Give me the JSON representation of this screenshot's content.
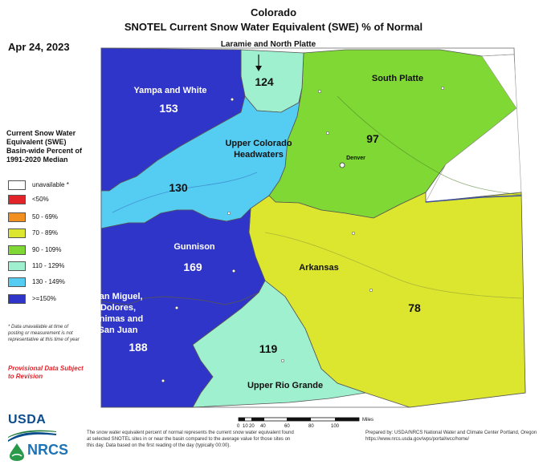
{
  "header": {
    "state": "Colorado",
    "subtitle": "SNOTEL Current Snow Water Equivalent (SWE) % of Normal",
    "date": "Apr 24, 2023"
  },
  "legend": {
    "title": "Current Snow Water Equivalent (SWE) Basin-wide Percent of 1991-2020 Median",
    "items": [
      {
        "label": "unavailable *",
        "color": "#ffffff"
      },
      {
        "label": "<50%",
        "color": "#e3232a"
      },
      {
        "label": "50 - 69%",
        "color": "#f18f21"
      },
      {
        "label": "70 - 89%",
        "color": "#dde62f"
      },
      {
        "label": "90 - 109%",
        "color": "#7fd834"
      },
      {
        "label": "110 - 129%",
        "color": "#9ff0cf"
      },
      {
        "label": "130 - 149%",
        "color": "#55cdf2"
      },
      {
        "label": ">=150%",
        "color": "#2f35c8"
      }
    ],
    "footnote": "* Data unavailable at time of posting or measurement is not representative at this time of year",
    "provisional": "Provisional Data Subject to Revision"
  },
  "basins": [
    {
      "name": "Yampa and White",
      "value": "153",
      "color": "#2f35c8"
    },
    {
      "name": "Laramie and North Platte",
      "value": "124",
      "color": "#9ff0cf"
    },
    {
      "name": "South Platte",
      "value": "97",
      "color": "#7fd834"
    },
    {
      "name": "Upper Colorado Headwaters",
      "value": "130",
      "color": "#55cdf2"
    },
    {
      "name": "Gunnison",
      "value": "169",
      "color": "#2f35c8"
    },
    {
      "name": "Arkansas",
      "value": "78",
      "color": "#dde62f"
    },
    {
      "name": "San Miguel, Dolores, Animas and San Juan",
      "value": "188",
      "color": "#2f35c8"
    },
    {
      "name": "Upper Rio Grande",
      "value": "119",
      "color": "#9ff0cf"
    }
  ],
  "cities": {
    "denver": "Denver"
  },
  "scale": {
    "unit": "Miles",
    "ticks": [
      "0",
      "10",
      "20",
      "40",
      "60",
      "80",
      "100"
    ]
  },
  "footer": {
    "usda": "USDA",
    "nrcs": "NRCS",
    "note": "The snow water equivalent percent of normal represents the current snow water equivalent found at selected SNOTEL sites in or near the basin compared to the average value for those sites on this day. Data based on the first reading of the day (typically 00:00).",
    "prepared": "Prepared by: USDA/NRCS National Water and Climate Center Portland, Oregon https://www.nrcs.usda.gov/wps/portal/wcc/home/"
  }
}
